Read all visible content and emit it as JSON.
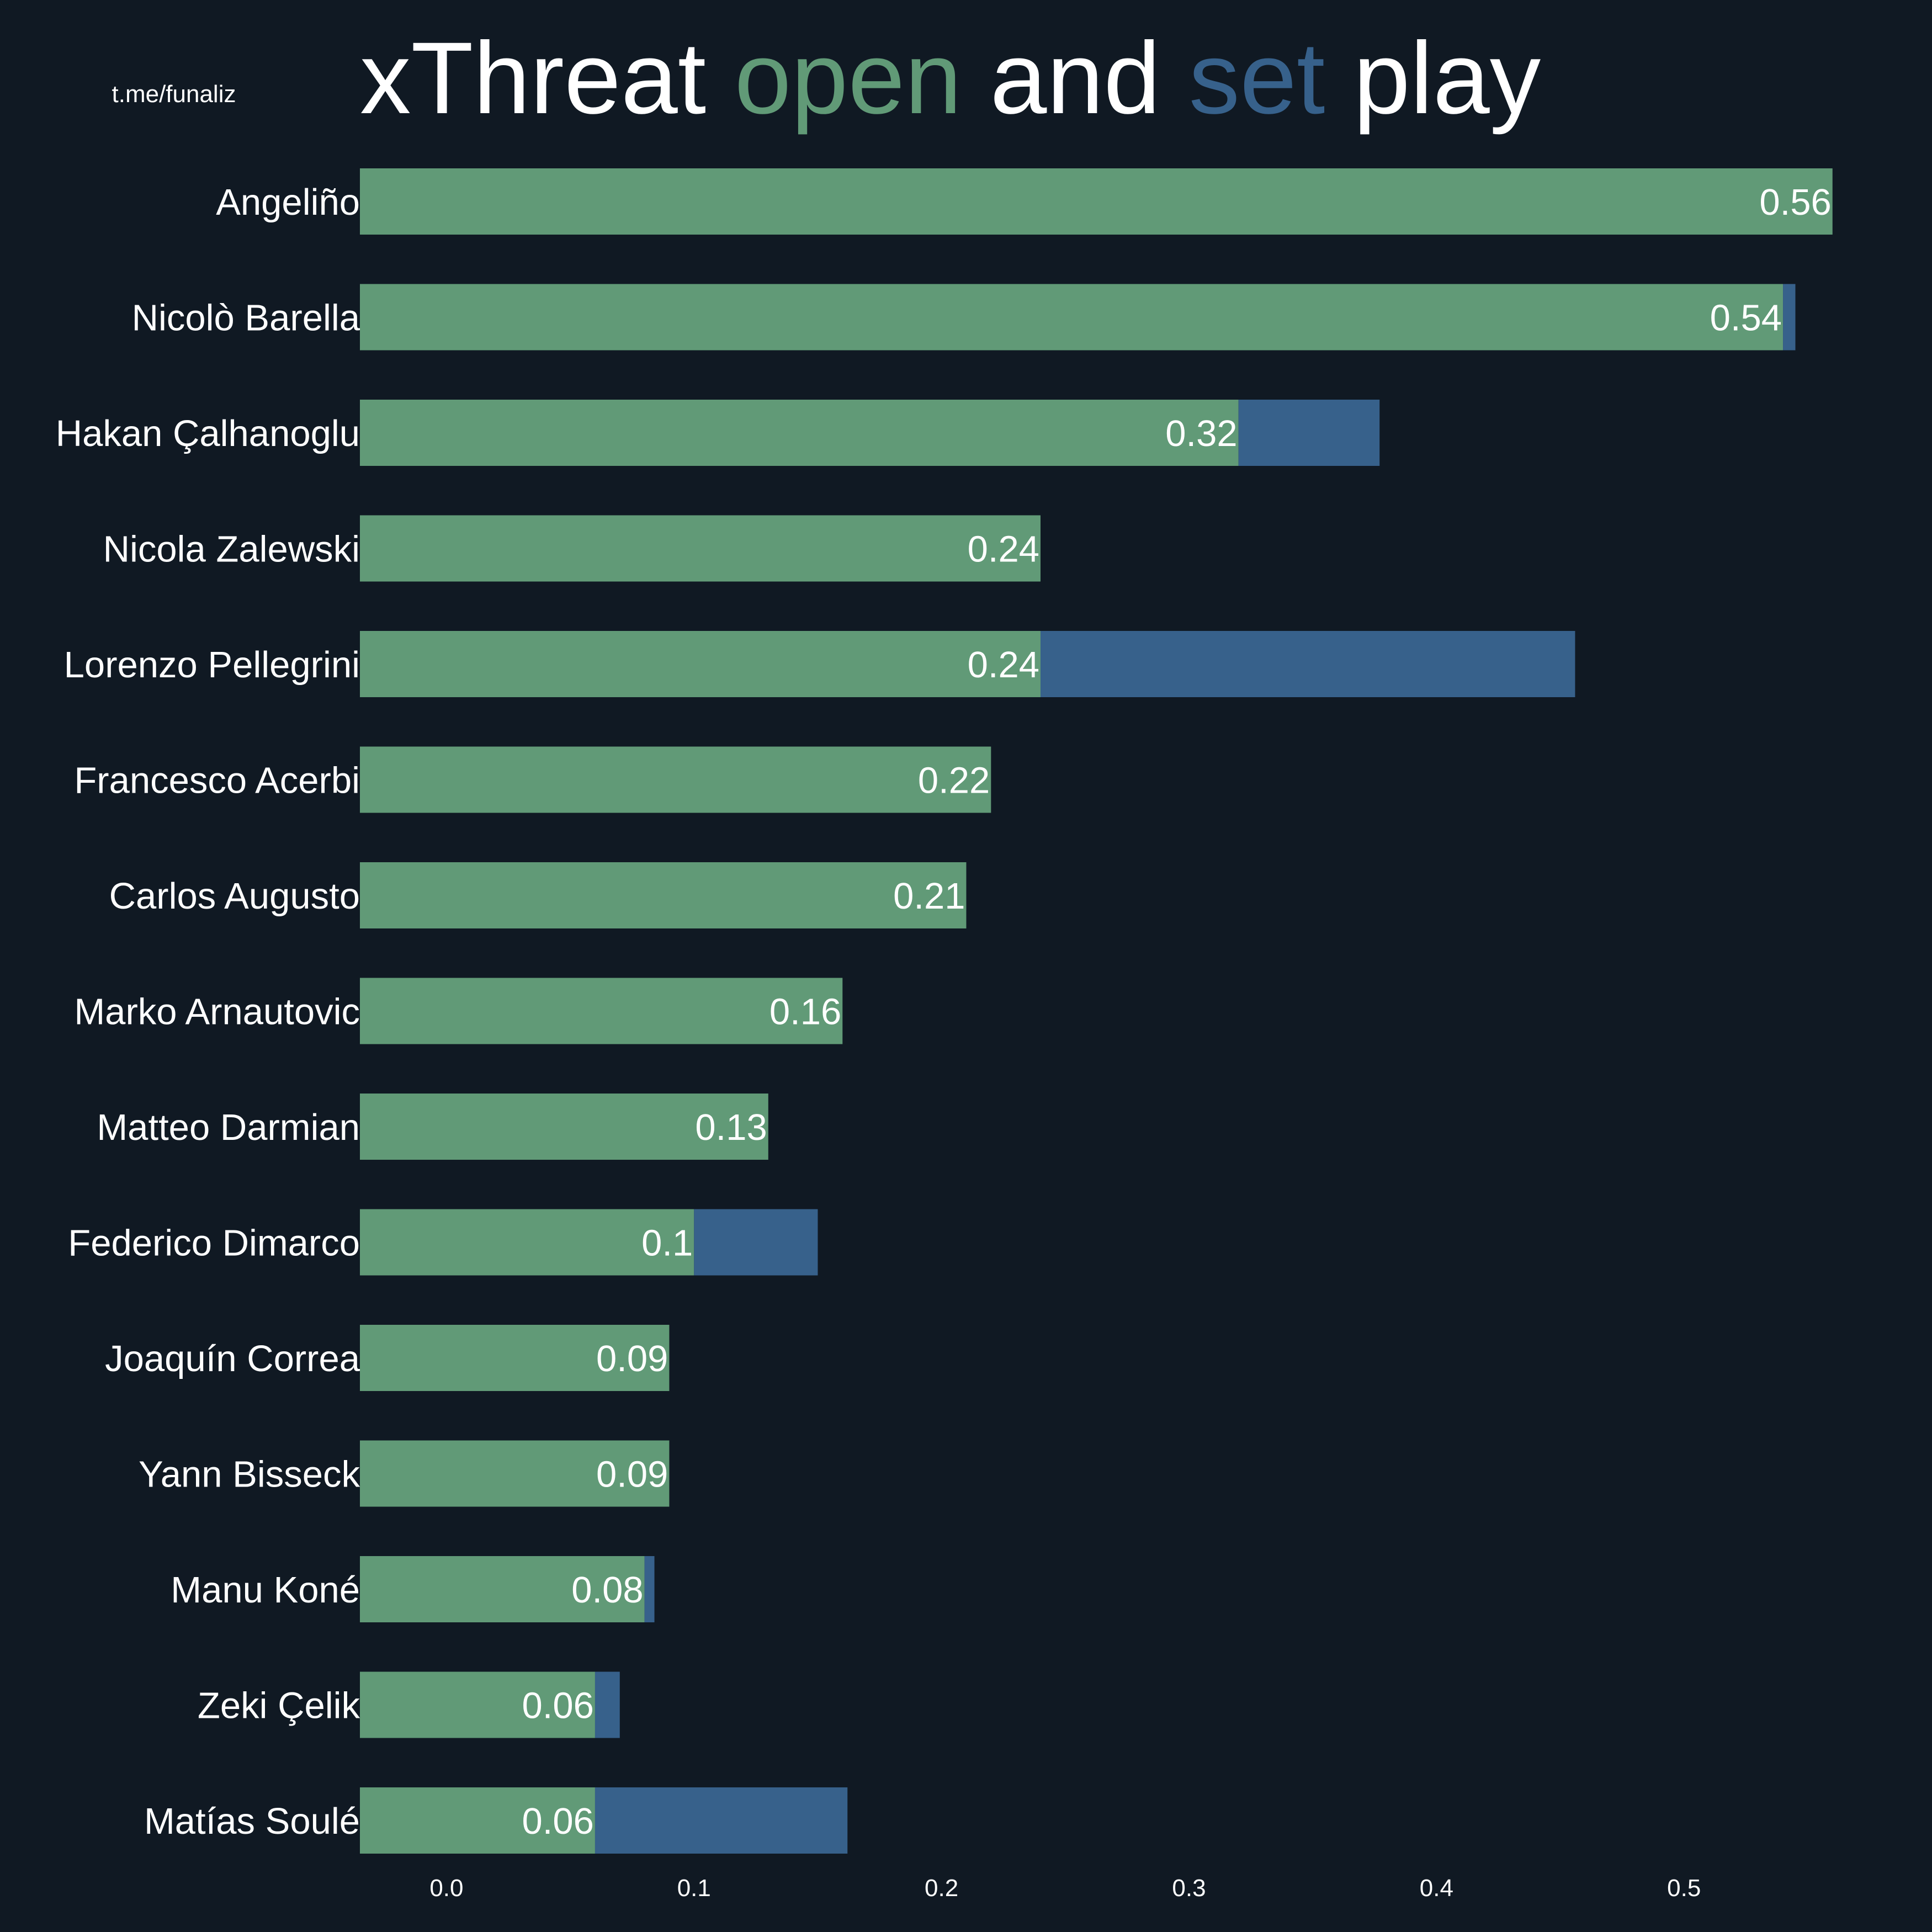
{
  "watermark": "t.me/funaliz",
  "title": {
    "part1": "xThreat ",
    "open": "open",
    "part2": " and ",
    "set": "set",
    "part3": " play"
  },
  "colors": {
    "background": "#101923",
    "open": "#619a77",
    "set": "#37618b",
    "text": "#ffffff"
  },
  "chart_data": {
    "type": "bar",
    "orientation": "horizontal",
    "stacked": true,
    "categories": [
      "Angeliño",
      "Nicolò Barella",
      "Hakan Çalhanoglu",
      "Nicola Zalewski",
      "Lorenzo Pellegrini",
      "Francesco Acerbi",
      "Carlos Augusto",
      "Marko Arnautovic",
      "Matteo Darmian",
      "Federico Dimarco",
      "Joaquín Correa",
      "Yann Bisseck",
      "Manu Koné",
      "Zeki Çelik",
      "Matías Soulé"
    ],
    "series": [
      {
        "name": "open",
        "values": [
          0.56,
          0.54,
          0.32,
          0.24,
          0.24,
          0.22,
          0.21,
          0.16,
          0.13,
          0.1,
          0.09,
          0.09,
          0.08,
          0.06,
          0.06
        ]
      },
      {
        "name": "set",
        "values": [
          0.0,
          0.005,
          0.057,
          0.0,
          0.216,
          0.0,
          0.0,
          0.0,
          0.0,
          0.05,
          0.0,
          0.0,
          0.004,
          0.01,
          0.102
        ]
      }
    ],
    "value_labels": [
      "0.56",
      "0.54",
      "0.32",
      "0.24",
      "0.24",
      "0.22",
      "0.21",
      "0.16",
      "0.13",
      "0.1",
      "0.09",
      "0.09",
      "0.08",
      "0.06",
      "0.06"
    ],
    "xticks": [
      "0.0",
      "0.1",
      "0.2",
      "0.3",
      "0.4",
      "0.5"
    ],
    "xlim": [
      -0.035,
      0.575
    ],
    "grid": false,
    "legend": "none (colored words in title)"
  }
}
